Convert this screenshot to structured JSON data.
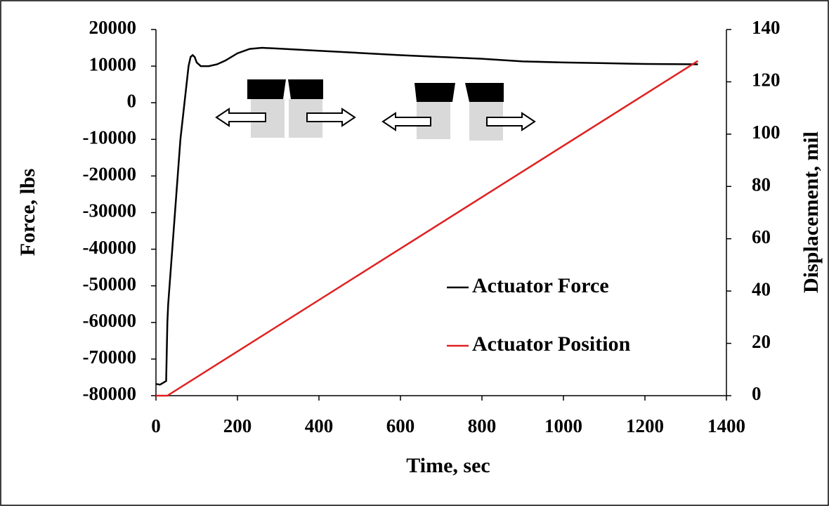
{
  "chart_data": {
    "type": "line",
    "x_label": "Time, sec",
    "y_label": "Force, lbs",
    "y2_label": "Displacement, mil",
    "xlim": [
      0,
      1400
    ],
    "xticks": [
      0,
      200,
      400,
      600,
      800,
      1000,
      1200,
      1400
    ],
    "ylim": [
      -80000,
      20000
    ],
    "yticks": [
      -80000,
      -70000,
      -60000,
      -50000,
      -40000,
      -30000,
      -20000,
      -10000,
      0,
      10000,
      20000
    ],
    "y2lim": [
      0,
      140
    ],
    "y2ticks": [
      0,
      20,
      40,
      60,
      80,
      100,
      120,
      140
    ],
    "grid": false,
    "series": [
      {
        "name": "Actuator Force",
        "color": "#000000",
        "x": [
          0,
          10,
          25,
          28,
          30,
          40,
          50,
          60,
          70,
          80,
          85,
          90,
          95,
          100,
          110,
          130,
          150,
          170,
          200,
          230,
          260,
          300,
          400,
          500,
          600,
          700,
          800,
          900,
          1000,
          1100,
          1200,
          1330
        ],
        "values": [
          -76800,
          -77000,
          -76000,
          -60000,
          -55000,
          -40000,
          -25000,
          -10000,
          0,
          10000,
          12500,
          13000,
          12500,
          11000,
          10000,
          10000,
          10500,
          11500,
          13500,
          14700,
          15000,
          14800,
          14200,
          13600,
          13000,
          12500,
          12000,
          11300,
          11000,
          10800,
          10600,
          10500
        ]
      },
      {
        "name": "Actuator Position",
        "color": "#e02020",
        "axis": "y2",
        "x": [
          0,
          28,
          1330
        ],
        "values": [
          0,
          0,
          128
        ]
      }
    ]
  }
}
